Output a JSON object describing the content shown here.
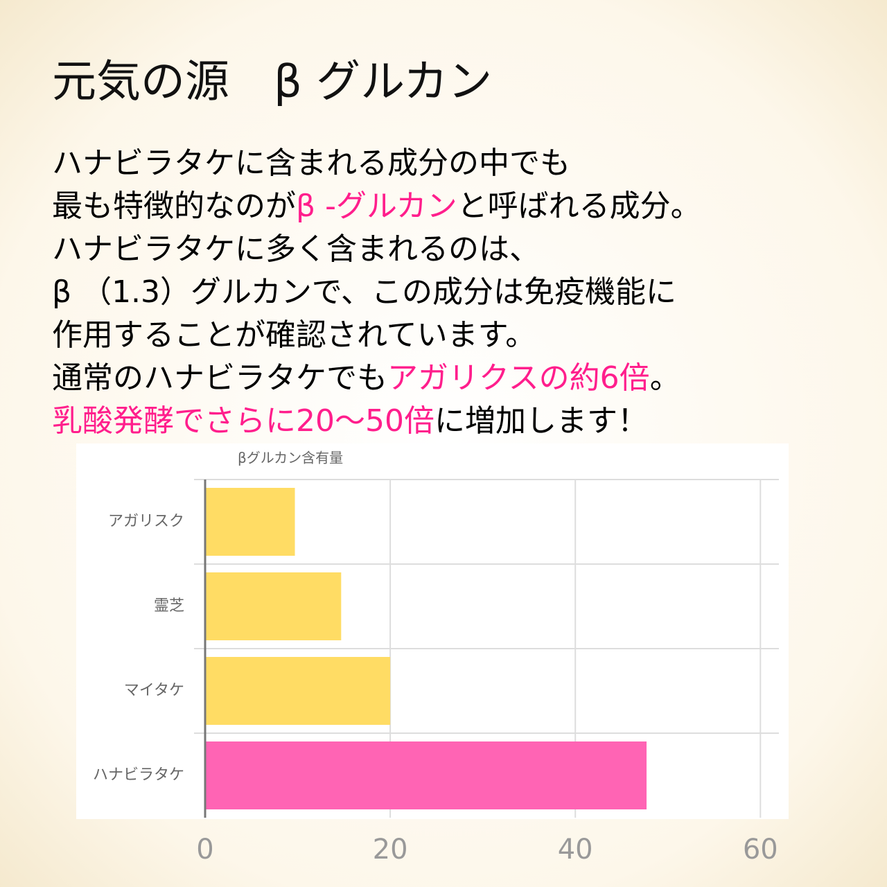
{
  "title": "元気の源　β グルカン",
  "body": {
    "lines": [
      [
        {
          "text": "ハナビラタケに含まれる成分の中でも",
          "color": "#000000"
        }
      ],
      [
        {
          "text": "最も特徴的なのが",
          "color": "#000000"
        },
        {
          "text": "β -グルカン",
          "color": "#ff1e8c"
        },
        {
          "text": "と呼ばれる成分。",
          "color": "#000000"
        }
      ],
      [
        {
          "text": "ハナビラタケに多く含まれるのは、",
          "color": "#000000"
        }
      ],
      [
        {
          "text": "β （1.3）グルカンで、この成分は免疫機能に",
          "color": "#000000"
        }
      ],
      [
        {
          "text": "作用することが確認されています。",
          "color": "#000000"
        }
      ],
      [
        {
          "text": "通常のハナビラタケでも",
          "color": "#000000"
        },
        {
          "text": "アガリクスの約6倍",
          "color": "#ff1e8c"
        },
        {
          "text": "。",
          "color": "#000000"
        }
      ],
      [
        {
          "text": "乳酸発酵でさらに20〜50倍",
          "color": "#ff1e8c"
        },
        {
          "text": "に増加します！",
          "color": "#000000"
        }
      ]
    ]
  },
  "chart_data": {
    "type": "bar",
    "orientation": "horizontal",
    "title": "βグルカン含有量",
    "categories": [
      "アガリスク",
      "霊芝",
      "マイタケ",
      "ハナビラタケ"
    ],
    "values": [
      9.7,
      14.7,
      20,
      47.7
    ],
    "colors": [
      "#ffdc64",
      "#ffdc64",
      "#ffdc64",
      "#ff64b4"
    ],
    "xlim": [
      0,
      62
    ],
    "xticks": [
      0,
      20,
      40,
      60
    ],
    "grid": true
  }
}
